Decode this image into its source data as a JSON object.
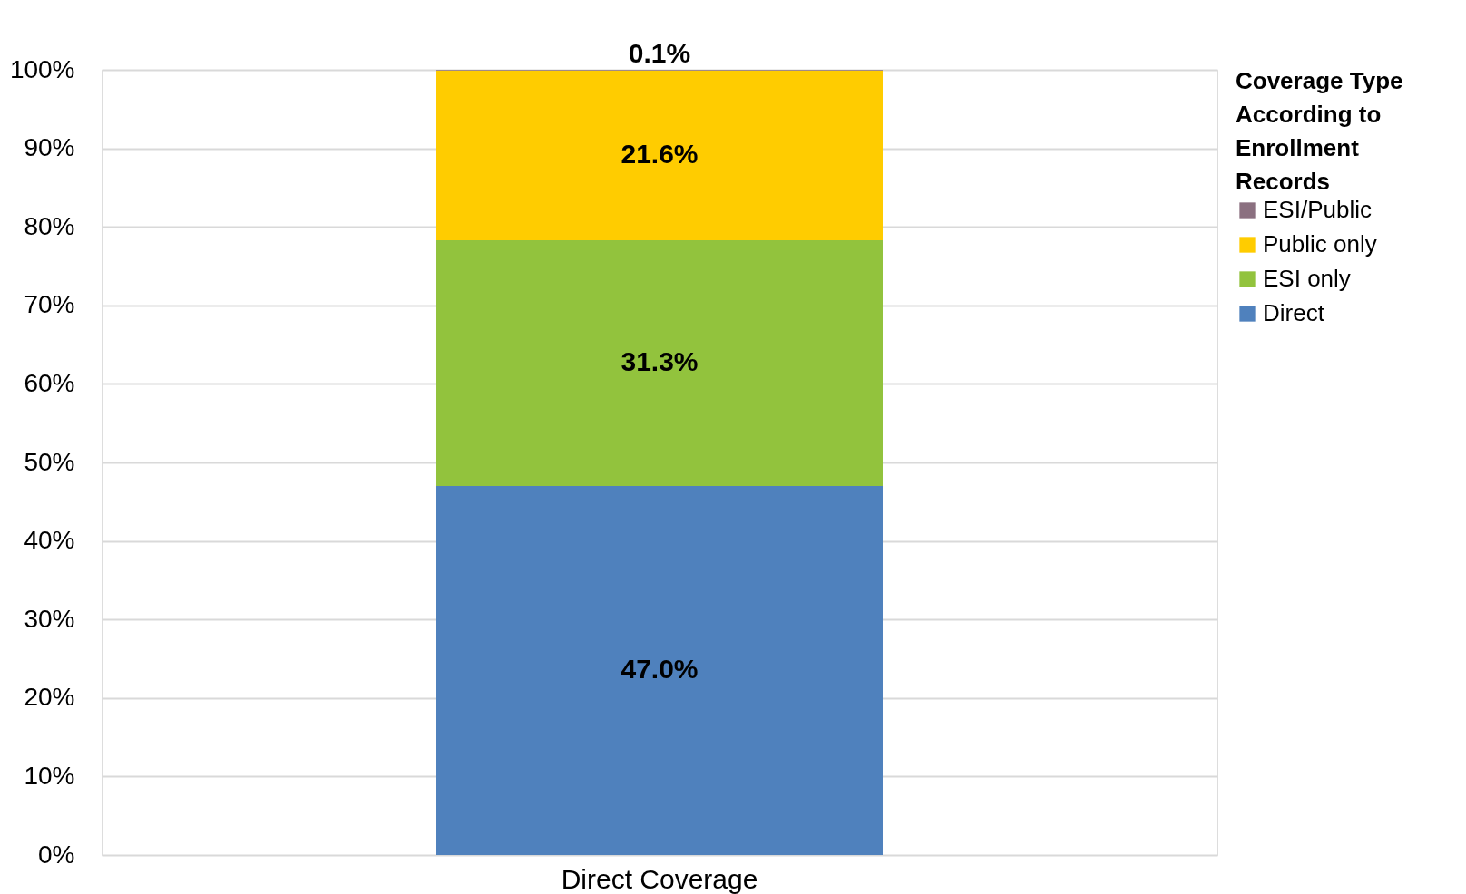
{
  "chart_data": {
    "type": "bar",
    "stacked": true,
    "categories": [
      "Direct Coverage"
    ],
    "series": [
      {
        "name": "Direct",
        "color": "#4f81bd",
        "values": [
          47.0
        ],
        "value_labels": [
          "47.0%"
        ]
      },
      {
        "name": "ESI only",
        "color": "#92c33d",
        "values": [
          31.3
        ],
        "value_labels": [
          "31.3%"
        ]
      },
      {
        "name": "Public only",
        "color": "#ffcc00",
        "values": [
          21.6
        ],
        "value_labels": [
          "21.6%"
        ]
      },
      {
        "name": "ESI/Public",
        "color": "#8b7080",
        "values": [
          0.1
        ],
        "value_labels": [
          "0.1%"
        ]
      }
    ],
    "legend_title": "Coverage Type According to Enrollment Records",
    "legend": "right",
    "ylim": [
      0,
      100
    ],
    "yticks": [
      {
        "value": 0,
        "label": "0%"
      },
      {
        "value": 10,
        "label": "10%"
      },
      {
        "value": 20,
        "label": "20%"
      },
      {
        "value": 30,
        "label": "30%"
      },
      {
        "value": 40,
        "label": "40%"
      },
      {
        "value": 50,
        "label": "50%"
      },
      {
        "value": 60,
        "label": "60%"
      },
      {
        "value": 70,
        "label": "70%"
      },
      {
        "value": 80,
        "label": "80%"
      },
      {
        "value": 90,
        "label": "90%"
      },
      {
        "value": 100,
        "label": "100%"
      }
    ],
    "grid": "y"
  }
}
